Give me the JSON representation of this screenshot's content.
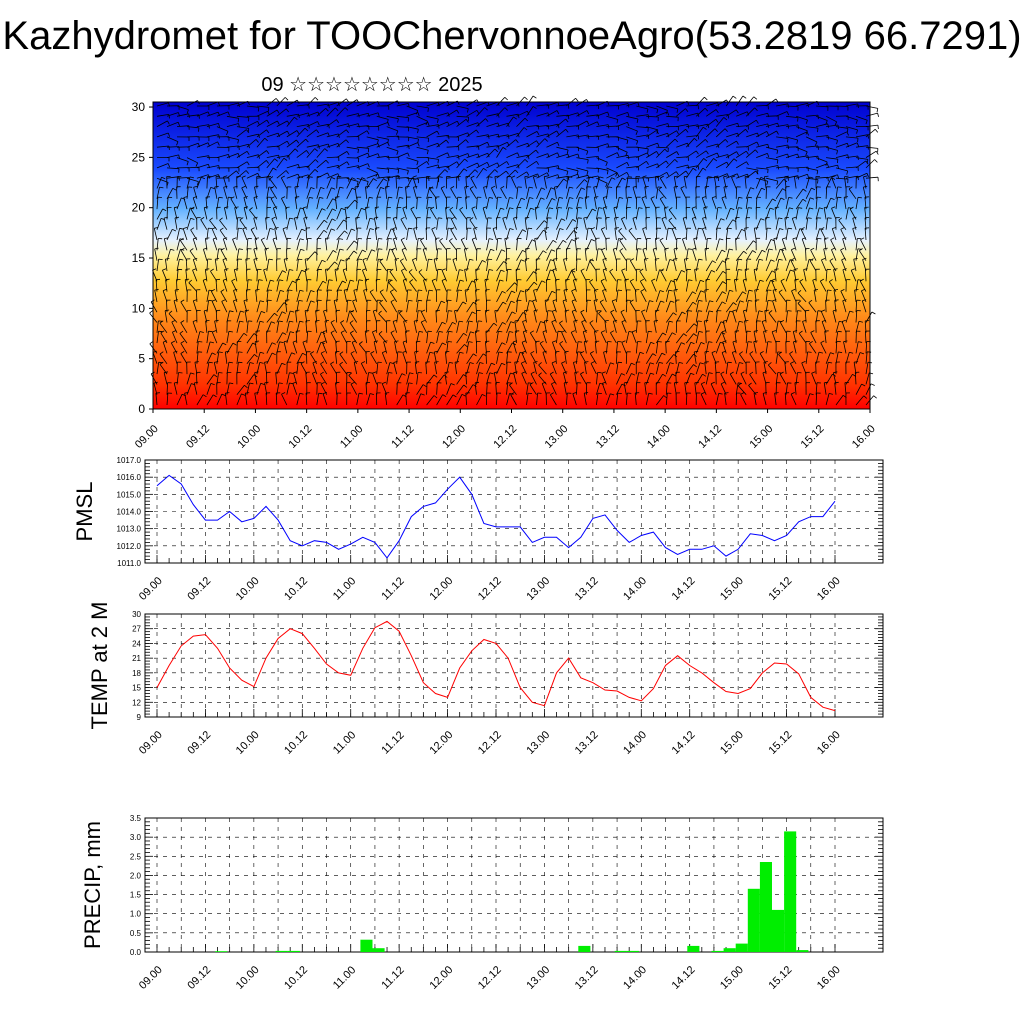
{
  "title": "Kazhydromet for TOOChervonnoeAgro(53.2819 66.7291)",
  "subtitle": "09 ☆☆☆☆☆☆☆☆ 2025",
  "chart_data": [
    {
      "type": "heatmap",
      "description_panel": "vertical cross-section with wind barbs",
      "y_ticks": [
        "0",
        "5",
        "10",
        "15",
        "20",
        "25",
        "30"
      ],
      "ylim": [
        0,
        30.5
      ],
      "x_ticks": [
        "09.00",
        "09.12",
        "10.00",
        "10.12",
        "11.00",
        "11.12",
        "12.00",
        "12.12",
        "13.00",
        "13.12",
        "14.00",
        "14.12",
        "15.00",
        "15.12",
        "16.00"
      ],
      "colors": [
        "#0000d0",
        "#1a4cff",
        "#66b3ff",
        "#e6f2ff",
        "#fff2a0",
        "#ffcc33",
        "#ff8c1a",
        "#ff3300",
        "#ff0000"
      ],
      "barbs": true
    },
    {
      "type": "line",
      "ylabel": "PMSL",
      "ylim": [
        1011.0,
        1017.0
      ],
      "y_ticks": [
        "1011.0",
        "1012.0",
        "1013.0",
        "1014.0",
        "1015.0",
        "1016.0",
        "1017.0"
      ],
      "x_ticks": [
        "09.00",
        "09.12",
        "10.00",
        "10.12",
        "11.00",
        "11.12",
        "12.00",
        "12.12",
        "13.00",
        "13.12",
        "14.00",
        "14.12",
        "15.00",
        "15.12",
        "16.00"
      ],
      "color": "#0000ff",
      "values": [
        1015.5,
        1016.1,
        1015.6,
        1014.4,
        1013.5,
        1013.5,
        1014.0,
        1013.4,
        1013.6,
        1014.3,
        1013.5,
        1012.3,
        1012.0,
        1012.3,
        1012.2,
        1011.8,
        1012.1,
        1012.5,
        1012.2,
        1011.3,
        1012.3,
        1013.7,
        1014.3,
        1014.5,
        1015.3,
        1016.0,
        1015.0,
        1013.3,
        1013.1,
        1013.1,
        1013.1,
        1012.2,
        1012.5,
        1012.5,
        1011.9,
        1012.5,
        1013.6,
        1013.8,
        1012.9,
        1012.2,
        1012.6,
        1012.8,
        1011.9,
        1011.5,
        1011.8,
        1011.8,
        1012.0,
        1011.4,
        1011.8,
        1012.7,
        1012.6,
        1012.3,
        1012.6,
        1013.4,
        1013.7,
        1013.7,
        1014.6
      ],
      "x_start_index_offset": 0
    },
    {
      "type": "line",
      "ylabel": "TEMP at 2 M",
      "ylim": [
        9,
        30
      ],
      "y_ticks": [
        "9",
        "12",
        "15",
        "18",
        "21",
        "24",
        "27",
        "30"
      ],
      "x_ticks": [
        "09.00",
        "09.12",
        "10.00",
        "10.12",
        "11.00",
        "11.12",
        "12.00",
        "12.12",
        "13.00",
        "13.12",
        "14.00",
        "14.12",
        "15.00",
        "15.12",
        "16.00"
      ],
      "color": "#ff0000",
      "values": [
        15.0,
        19.5,
        23.5,
        25.5,
        25.8,
        23.0,
        19.0,
        16.5,
        15.2,
        21.0,
        25.0,
        27.0,
        26.0,
        23.0,
        19.8,
        18.0,
        17.5,
        23.0,
        27.2,
        28.5,
        26.5,
        21.5,
        16.0,
        13.8,
        13.0,
        19.0,
        22.5,
        24.8,
        24.0,
        21.0,
        15.0,
        12.0,
        11.3,
        18.0,
        21.0,
        17.0,
        16.0,
        14.5,
        14.3,
        13.0,
        12.3,
        14.8,
        19.5,
        21.5,
        19.5,
        18.0,
        16.0,
        14.2,
        13.8,
        14.8,
        18.0,
        20.0,
        19.8,
        17.8,
        13.0,
        11.0,
        10.3
      ],
      "x_start_index_offset": 0
    },
    {
      "type": "bar",
      "ylabel": "PRECIP, mm",
      "ylim": [
        0,
        3.5
      ],
      "y_ticks": [
        "0.0",
        "0.5",
        "1.0",
        "1.5",
        "2.0",
        "2.5",
        "3.0",
        "3.5"
      ],
      "x_ticks": [
        "09.00",
        "09.12",
        "10.00",
        "10.12",
        "11.00",
        "11.12",
        "12.00",
        "12.12",
        "13.00",
        "13.12",
        "14.00",
        "14.12",
        "15.00",
        "15.12",
        "16.00"
      ],
      "color": "#00ee00",
      "values": [
        0,
        0,
        0,
        0,
        0,
        0.02,
        0,
        0,
        0,
        0,
        0.03,
        0.03,
        0,
        0,
        0,
        0,
        0,
        0.32,
        0.1,
        0,
        0,
        0,
        0,
        0,
        0,
        0,
        0,
        0,
        0,
        0,
        0,
        0,
        0,
        0,
        0,
        0.16,
        0,
        0,
        0.03,
        0.03,
        0,
        0,
        0,
        0,
        0.16,
        0,
        0.03,
        0.1,
        0.22,
        1.65,
        2.35,
        1.1,
        3.15,
        0.05,
        0,
        0
      ]
    }
  ]
}
